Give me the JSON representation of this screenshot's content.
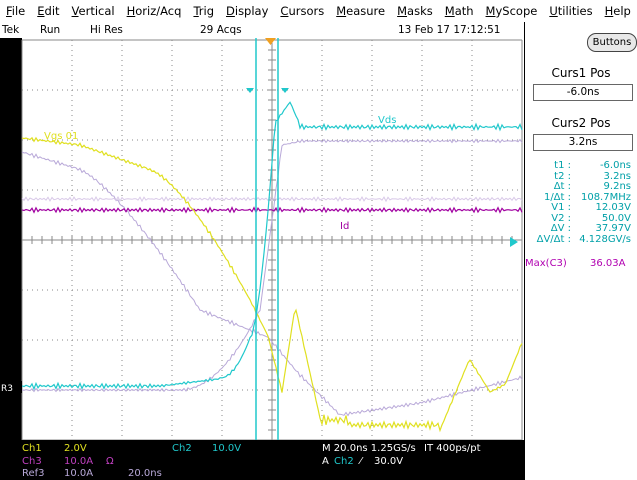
{
  "menu": [
    "File",
    "Edit",
    "Vertical",
    "Horiz/Acq",
    "Trig",
    "Display",
    "Cursors",
    "Measure",
    "Masks",
    "Math",
    "MyScope",
    "Utilities",
    "Help"
  ],
  "status": {
    "brand": "Tek",
    "run": "Run",
    "mode": "Hi Res",
    "acqs": "29 Acqs",
    "datetime": "13 Feb 17 17:12:51"
  },
  "panel": {
    "buttons_label": "Buttons",
    "curs1_title": "Curs1 Pos",
    "curs1_value": "-6.0ns",
    "curs2_title": "Curs2 Pos",
    "curs2_value": "3.2ns",
    "readouts": [
      {
        "label": "t1 :",
        "value": "-6.0ns"
      },
      {
        "label": "t2 :",
        "value": "3.2ns"
      },
      {
        "label": "Δt :",
        "value": "9.2ns"
      },
      {
        "label": "1/Δt :",
        "value": "108.7MHz"
      },
      {
        "label": "V1 :",
        "value": "12.03V"
      },
      {
        "label": "V2 :",
        "value": "50.0V"
      },
      {
        "label": "ΔV :",
        "value": "37.97V"
      },
      {
        "label": "ΔV/Δt :",
        "value": "4.128GV/s"
      }
    ],
    "measure_label": "Max(C3)",
    "measure_value": "36.03A"
  },
  "traces": {
    "vgs_label": "Vgs 01",
    "vds_label": "Vds",
    "id_label": "Id",
    "ref_marker": "R3"
  },
  "bottom": {
    "ch1": "Ch1",
    "ch1_scale": "2.0V",
    "ch2": "Ch2",
    "ch2_scale": "10.0V",
    "ch3": "Ch3",
    "ch3_scale": "10.0A",
    "ch3_unit": "Ω",
    "ref3": "Ref3",
    "ref3_scale": "10.0A",
    "ref3_time": "20.0ns",
    "timebase": "M 20.0ns 1.25GS/s",
    "it": "IT 400ps/pt",
    "trig_mode": "A",
    "trig_src": "Ch2",
    "trig_slope": "⁄",
    "trig_level": "30.0V"
  },
  "colors": {
    "ch1": "#e0e020",
    "ch2": "#20c8cc",
    "ch3": "#a000a0",
    "ref": "#b8a8d8",
    "grid": "#8a8a8a",
    "trigger": "#f0a020"
  }
}
